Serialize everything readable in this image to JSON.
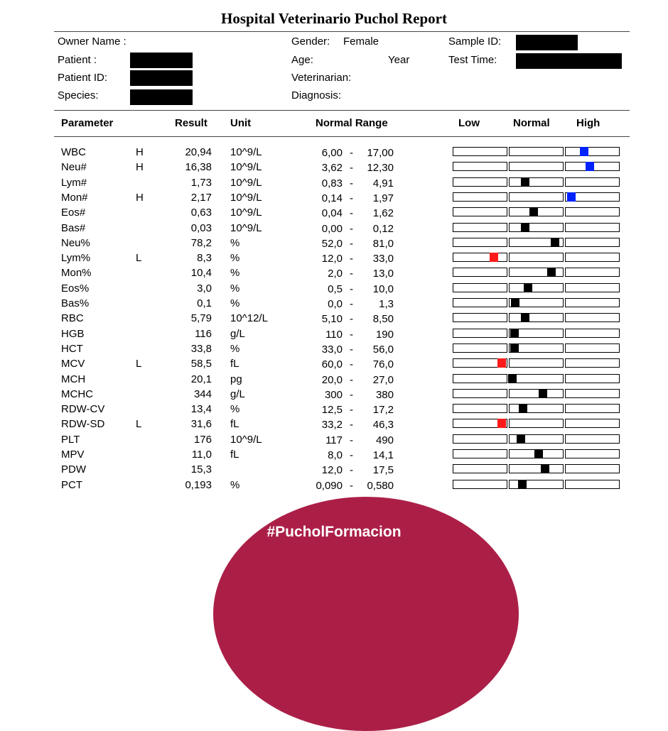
{
  "report_title": "Hospital Veterinario Puchol Report",
  "info": {
    "owner_label": "Owner Name :",
    "patient_label": "Patient :",
    "patient_id_label": "Patient ID:",
    "species_label": "Species:",
    "gender_label": "Gender:",
    "gender_value": "Female",
    "age_label": "Age:",
    "age_unit": "Year",
    "veterinarian_label": "Veterinarian:",
    "diagnosis_label": "Diagnosis:",
    "sample_id_label": "Sample ID:",
    "test_time_label": "Test Time:"
  },
  "headers": {
    "parameter": "Parameter",
    "result": "Result",
    "unit": "Unit",
    "normal_range": "Normal Range",
    "low": "Low",
    "normal": "Normal",
    "high": "High"
  },
  "rows": [
    {
      "name": "WBC",
      "flag": "H",
      "result": "20,94",
      "unit": "10^9/L",
      "lo": "6,00",
      "hi": "17,00",
      "marker": {
        "zone": "high",
        "pos": 0.35,
        "color": "#0022ff"
      }
    },
    {
      "name": "Neu#",
      "flag": "H",
      "result": "16,38",
      "unit": "10^9/L",
      "lo": "3,62",
      "hi": "12,30",
      "marker": {
        "zone": "high",
        "pos": 0.45,
        "color": "#0022ff"
      }
    },
    {
      "name": "Lym#",
      "flag": "",
      "result": "1,73",
      "unit": "10^9/L",
      "lo": "0,83",
      "hi": "4,91",
      "marker": {
        "zone": "normal",
        "pos": 0.3,
        "color": "#000000"
      }
    },
    {
      "name": "Mon#",
      "flag": "H",
      "result": "2,17",
      "unit": "10^9/L",
      "lo": "0,14",
      "hi": "1,97",
      "marker": {
        "zone": "high",
        "pos": 0.12,
        "color": "#0022ff"
      }
    },
    {
      "name": "Eos#",
      "flag": "",
      "result": "0,63",
      "unit": "10^9/L",
      "lo": "0,04",
      "hi": "1,62",
      "marker": {
        "zone": "normal",
        "pos": 0.45,
        "color": "#000000"
      }
    },
    {
      "name": "Bas#",
      "flag": "",
      "result": "0,03",
      "unit": "10^9/L",
      "lo": "0,00",
      "hi": "0,12",
      "marker": {
        "zone": "normal",
        "pos": 0.3,
        "color": "#000000"
      }
    },
    {
      "name": "Neu%",
      "flag": "",
      "result": "78,2",
      "unit": "%",
      "lo": "52,0",
      "hi": "81,0",
      "marker": {
        "zone": "normal",
        "pos": 0.85,
        "color": "#000000"
      }
    },
    {
      "name": "Lym%",
      "flag": "L",
      "result": "8,3",
      "unit": "%",
      "lo": "12,0",
      "hi": "33,0",
      "marker": {
        "zone": "low",
        "pos": 0.75,
        "color": "#ff1a1a"
      }
    },
    {
      "name": "Mon%",
      "flag": "",
      "result": "10,4",
      "unit": "%",
      "lo": "2,0",
      "hi": "13,0",
      "marker": {
        "zone": "normal",
        "pos": 0.78,
        "color": "#000000"
      }
    },
    {
      "name": "Eos%",
      "flag": "",
      "result": "3,0",
      "unit": "%",
      "lo": "0,5",
      "hi": "10,0",
      "marker": {
        "zone": "normal",
        "pos": 0.35,
        "color": "#000000"
      }
    },
    {
      "name": "Bas%",
      "flag": "",
      "result": "0,1",
      "unit": "%",
      "lo": "0,0",
      "hi": "1,3",
      "marker": {
        "zone": "normal",
        "pos": 0.12,
        "color": "#000000"
      }
    },
    {
      "name": "RBC",
      "flag": "",
      "result": "5,79",
      "unit": "10^12/L",
      "lo": "5,10",
      "hi": "8,50",
      "marker": {
        "zone": "normal",
        "pos": 0.3,
        "color": "#000000"
      }
    },
    {
      "name": "HGB",
      "flag": "",
      "result": "116",
      "unit": "g/L",
      "lo": "110",
      "hi": "190",
      "marker": {
        "zone": "normal",
        "pos": 0.1,
        "color": "#000000"
      }
    },
    {
      "name": "HCT",
      "flag": "",
      "result": "33,8",
      "unit": "%",
      "lo": "33,0",
      "hi": "56,0",
      "marker": {
        "zone": "normal",
        "pos": 0.1,
        "color": "#000000"
      }
    },
    {
      "name": "MCV",
      "flag": "L",
      "result": "58,5",
      "unit": "fL",
      "lo": "60,0",
      "hi": "76,0",
      "marker": {
        "zone": "low",
        "pos": 0.9,
        "color": "#ff1a1a"
      }
    },
    {
      "name": "MCH",
      "flag": "",
      "result": "20,1",
      "unit": "pg",
      "lo": "20,0",
      "hi": "27,0",
      "marker": {
        "zone": "normal",
        "pos": 0.06,
        "color": "#000000"
      }
    },
    {
      "name": "MCHC",
      "flag": "",
      "result": "344",
      "unit": "g/L",
      "lo": "300",
      "hi": "380",
      "marker": {
        "zone": "normal",
        "pos": 0.62,
        "color": "#000000"
      }
    },
    {
      "name": "RDW-CV",
      "flag": "",
      "result": "13,4",
      "unit": "%",
      "lo": "12,5",
      "hi": "17,2",
      "marker": {
        "zone": "normal",
        "pos": 0.26,
        "color": "#000000"
      }
    },
    {
      "name": "RDW-SD",
      "flag": "L",
      "result": "31,6",
      "unit": "fL",
      "lo": "33,2",
      "hi": "46,3",
      "marker": {
        "zone": "low",
        "pos": 0.9,
        "color": "#ff1a1a"
      }
    },
    {
      "name": "PLT",
      "flag": "",
      "result": "176",
      "unit": "10^9/L",
      "lo": "117",
      "hi": "490",
      "marker": {
        "zone": "normal",
        "pos": 0.22,
        "color": "#000000"
      }
    },
    {
      "name": "MPV",
      "flag": "",
      "result": "11,0",
      "unit": "fL",
      "lo": "8,0",
      "hi": "14,1",
      "marker": {
        "zone": "normal",
        "pos": 0.55,
        "color": "#000000"
      }
    },
    {
      "name": "PDW",
      "flag": "",
      "result": "15,3",
      "unit": "",
      "lo": "12,0",
      "hi": "17,5",
      "marker": {
        "zone": "normal",
        "pos": 0.66,
        "color": "#000000"
      }
    },
    {
      "name": "PCT",
      "flag": "",
      "result": "0,193",
      "unit": "%",
      "lo": "0,090",
      "hi": "0,580",
      "marker": {
        "zone": "normal",
        "pos": 0.25,
        "color": "#000000"
      }
    }
  ],
  "banner": {
    "text": "#PucholFormacion",
    "color": "#ab1f47"
  }
}
